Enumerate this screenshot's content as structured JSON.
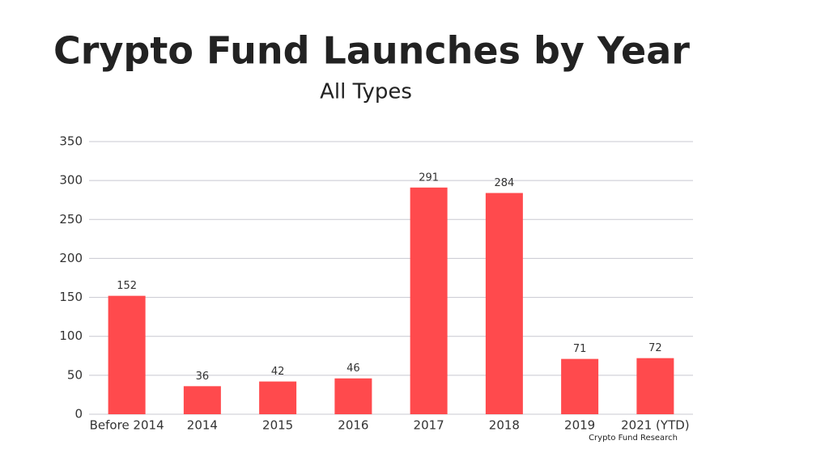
{
  "chart_data": {
    "type": "bar",
    "title": "Crypto Fund Launches by Year",
    "subtitle": "All Types",
    "categories": [
      "Before 2014",
      "2014",
      "2015",
      "2016",
      "2017",
      "2018",
      "2019",
      "2021 (YTD)"
    ],
    "values": [
      152,
      36,
      42,
      46,
      291,
      284,
      71,
      72
    ],
    "color": "#ff4a4d",
    "ylim": [
      0,
      350
    ],
    "yticks": [
      0,
      50,
      100,
      150,
      200,
      250,
      300,
      350
    ],
    "grid": true,
    "source": "Crypto Fund Research"
  }
}
